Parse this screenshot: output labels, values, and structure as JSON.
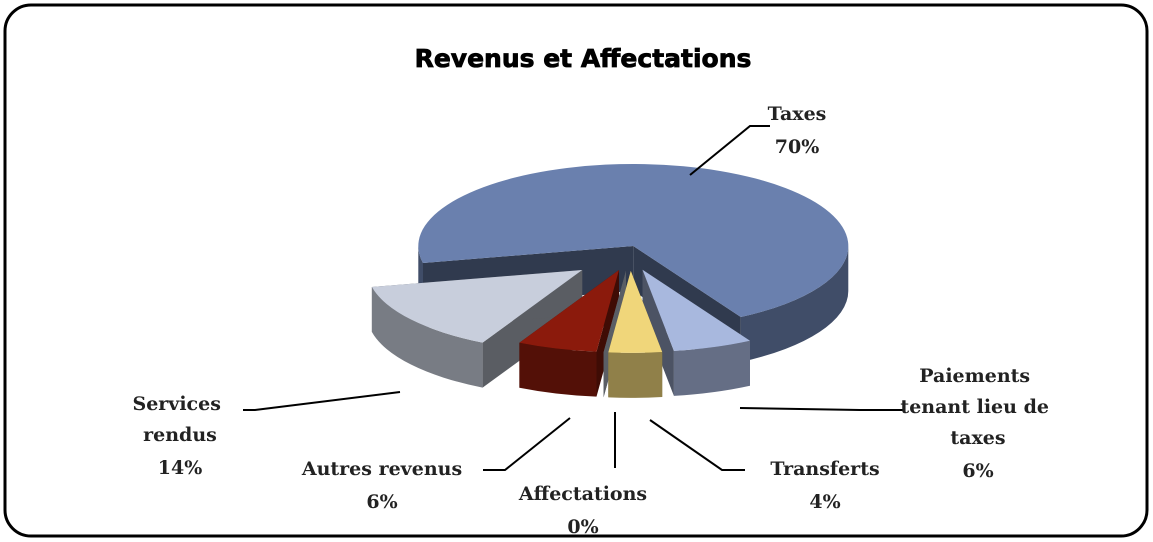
{
  "chart_data": {
    "type": "pie",
    "title": "Revenus et Affectations",
    "categories": [
      "Taxes",
      "Paiements tenant lieu de taxes",
      "Transferts",
      "Affectations",
      "Autres revenus",
      "Services rendus"
    ],
    "values": [
      70,
      6,
      4,
      0,
      6,
      14
    ],
    "value_labels": [
      "70%",
      "6%",
      "4%",
      "0%",
      "6%",
      "14%"
    ],
    "colors": [
      "#6a80ae",
      "#a8b8de",
      "#f0d67a",
      "#c8d0e0",
      "#8b1a0c",
      "#c8cedc"
    ]
  }
}
